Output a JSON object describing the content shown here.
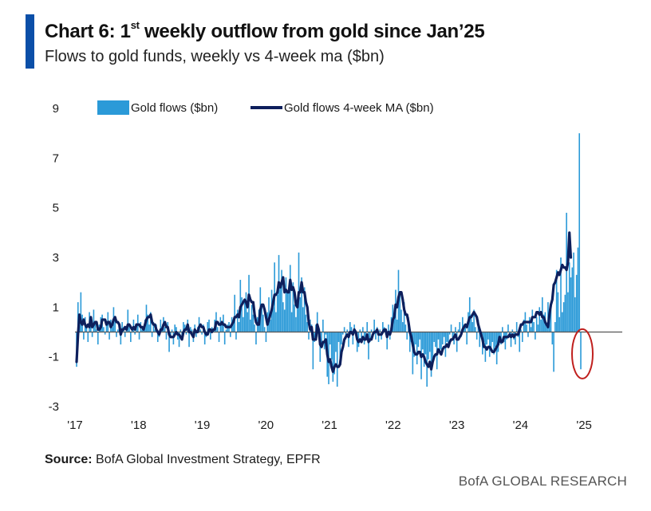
{
  "header": {
    "title_prefix": "Chart 6: 1",
    "title_sup": "st",
    "title_suffix": " weekly outflow from gold since Jan’25",
    "subtitle": "Flows to gold funds, weekly vs 4-week ma ($bn)",
    "accent_color": "#0b4fa8"
  },
  "footer": {
    "source_label": "Source:",
    "source_text": " BofA Global Investment Strategy, EPFR",
    "brand": "BofA GLOBAL RESEARCH"
  },
  "chart_data": {
    "type": "bar",
    "title": "",
    "xlabel": "",
    "ylabel": "",
    "ylim": [
      -3,
      9
    ],
    "yticks": [
      -3,
      -1,
      1,
      3,
      5,
      7,
      9
    ],
    "x_tick_labels": [
      "'17",
      "'18",
      "'19",
      "'20",
      "'21",
      "'22",
      "'23",
      "'24",
      "'25"
    ],
    "x_start_year": 2017,
    "x_end_year": 2025.6,
    "grid": false,
    "legend_position": "top",
    "colors": {
      "bars": "#2b9ad8",
      "ma_line": "#0d1f5c",
      "zero_line": "#555555",
      "highlight": "#c0201e"
    },
    "highlight": {
      "label": "latest week outflow",
      "value": -1.5
    },
    "series": [
      {
        "name": "Gold flows ($bn)",
        "type": "bar",
        "values": [
          -1.4,
          1.2,
          0.4,
          1.6,
          0.7,
          -0.3,
          0.6,
          0.3,
          -0.4,
          0.8,
          0.2,
          -0.2,
          0.9,
          0.4,
          0.1,
          -0.5,
          0.3,
          0.6,
          0.7,
          0.2,
          -0.1,
          0.4,
          0.8,
          -0.3,
          0.5,
          0.2,
          1.0,
          0.6,
          -0.2,
          0.1,
          0.3,
          -0.5,
          0.4,
          0.2,
          -0.2,
          0.1,
          0.9,
          0.3,
          -0.4,
          0.2,
          0.5,
          -0.1,
          0.3,
          0.7,
          -0.3,
          0.4,
          0.1,
          0.2,
          0.5,
          1.1,
          0.7,
          0.3,
          0.8,
          -0.2,
          0.4,
          0.1,
          0.3,
          -0.4,
          -0.2,
          0.5,
          0.1,
          0.6,
          0.2,
          -0.3,
          0.4,
          -0.8,
          -0.2,
          0.1,
          -0.5,
          0.3,
          0.2,
          -0.3,
          -0.6,
          0.1,
          -0.2,
          0.4,
          0.3,
          -0.1,
          0.5,
          -0.6,
          0.2,
          0.1,
          -0.4,
          0.3,
          -0.2,
          0.2,
          0.6,
          0.1,
          -0.1,
          0.3,
          -0.5,
          -0.2,
          0.4,
          0.5,
          -0.3,
          0.2,
          0.1,
          0.5,
          0.8,
          0.2,
          -0.4,
          0.6,
          0.3,
          0.7,
          -0.5,
          0.1,
          0.3,
          0.4,
          -0.2,
          0.6,
          0.5,
          1.5,
          -0.3,
          0.9,
          0.4,
          2.1,
          1.4,
          0.6,
          1.2,
          1.6,
          0.8,
          2.3,
          0.5,
          1.1,
          0.7,
          0.3,
          -0.5,
          0.6,
          0.9,
          1.8,
          1.0,
          0.7,
          0.2,
          -0.4,
          0.8,
          1.4,
          0.5,
          1.7,
          1.0,
          2.8,
          0.8,
          1.5,
          3.1,
          1.9,
          2.5,
          1.2,
          0.9,
          2.2,
          1.6,
          1.7,
          2.7,
          0.8,
          2.0,
          1.1,
          0.6,
          1.3,
          3.2,
          1.4,
          2.2,
          1.0,
          1.8,
          0.7,
          0.4,
          -0.3,
          0.5,
          0.3,
          -1.5,
          -0.4,
          0.3,
          0.8,
          -0.2,
          -1.2,
          -0.5,
          0.5,
          -0.7,
          -0.1,
          -1.8,
          -2.1,
          -0.5,
          -1.1,
          -2.0,
          -1.7,
          -0.8,
          -2.2,
          -0.4,
          -1.2,
          -0.5,
          -0.1,
          0.2,
          -0.3,
          0.1,
          -0.6,
          0.4,
          0.2,
          -0.5,
          0.3,
          -0.1,
          -0.8,
          -0.6,
          0.1,
          -0.3,
          0.2,
          -0.5,
          -0.2,
          0.4,
          -1.1,
          -0.4,
          0.1,
          -0.2,
          0.5,
          -0.3,
          0.2,
          -0.4,
          0.1,
          -0.3,
          0.4,
          0.2,
          -0.1,
          -0.7,
          0.3,
          -0.3,
          0.6,
          1.1,
          0.8,
          1.7,
          0.5,
          2.5,
          1.6,
          0.9,
          0.4,
          1.2,
          0.3,
          -0.3,
          0.6,
          -0.8,
          -0.4,
          -1.7,
          -1.0,
          -0.5,
          -1.3,
          -0.6,
          -0.3,
          -1.9,
          -0.7,
          -1.4,
          -0.9,
          -2.2,
          -1.1,
          -0.8,
          -1.8,
          -1.2,
          -0.4,
          -0.6,
          -1.5,
          -0.3,
          -0.9,
          -0.7,
          -0.5,
          -0.2,
          -1.0,
          -0.4,
          -0.6,
          -0.1,
          0.3,
          -0.3,
          -0.5,
          0.2,
          -0.8,
          0.1,
          0.4,
          -0.2,
          0.6,
          0.3,
          0.2,
          -0.5,
          0.8,
          1.4,
          0.7,
          0.4,
          0.9,
          0.2,
          -0.3,
          0.5,
          -0.6,
          -0.2,
          -0.9,
          -0.4,
          -1.2,
          -0.5,
          -0.3,
          -1.0,
          -0.7,
          -0.4,
          -0.9,
          -0.6,
          -1.3,
          -0.8,
          -0.2,
          -0.5,
          0.2,
          -0.4,
          -0.7,
          -0.3,
          0.3,
          -0.2,
          -0.6,
          0.1,
          -0.3,
          -0.5,
          0.4,
          -0.2,
          -0.8,
          0.1,
          -0.4,
          0.5,
          0.8,
          0.3,
          -0.2,
          0.6,
          0.2,
          0.9,
          0.4,
          -0.3,
          0.6,
          0.3,
          1.0,
          0.5,
          1.4,
          0.7,
          0.8,
          0.3,
          1.2,
          0.5,
          0.9,
          -0.5,
          -1.6,
          0.4,
          2.5,
          1.6,
          0.6,
          3.0,
          0.8,
          1.2,
          1.5,
          4.8,
          1.6,
          2.8,
          2.2,
          2.6,
          3.2,
          1.4,
          2.3,
          3.4,
          8.0,
          -1.5
        ]
      },
      {
        "name": "Gold flows 4-week MA ($bn)",
        "type": "line",
        "values": [
          -1.2,
          -0.1,
          0.7,
          0.4,
          0.3,
          0.5,
          0.3,
          0.2,
          0.3,
          0.2,
          0.6,
          0.2,
          0.3,
          0.4,
          0.4,
          0.1,
          0.1,
          0.2,
          0.5,
          0.5,
          0.5,
          0.3,
          0.4,
          0.4,
          0.2,
          0.3,
          0.5,
          0.6,
          0.4,
          0.4,
          0.3,
          -0.1,
          0.1,
          0.1,
          0.2,
          0.1,
          0.3,
          0.3,
          0.2,
          0.1,
          0.2,
          0.1,
          0.3,
          0.3,
          0.3,
          0.2,
          0.2,
          0.1,
          0.3,
          0.5,
          0.6,
          0.6,
          0.7,
          0.4,
          0.3,
          0.3,
          0.1,
          0.0,
          -0.1,
          0.1,
          0.1,
          0.3,
          0.4,
          0.2,
          0.2,
          -0.1,
          -0.2,
          -0.2,
          -0.2,
          -0.1,
          0.0,
          -0.1,
          -0.1,
          -0.2,
          -0.3,
          0.0,
          0.1,
          0.1,
          0.3,
          0.0,
          0.0,
          -0.1,
          -0.2,
          0.1,
          0.0,
          0.0,
          0.2,
          0.3,
          0.2,
          0.2,
          0.0,
          -0.1,
          -0.1,
          0.1,
          0.1,
          0.0,
          0.1,
          0.1,
          0.4,
          0.4,
          0.3,
          0.3,
          0.4,
          0.3,
          0.3,
          0.2,
          0.2,
          0.2,
          0.2,
          0.3,
          0.4,
          0.6,
          0.6,
          0.7,
          0.6,
          1.0,
          1.1,
          1.2,
          1.3,
          1.2,
          1.0,
          1.5,
          1.3,
          1.2,
          1.2,
          0.7,
          0.4,
          0.3,
          0.3,
          0.9,
          1.1,
          1.1,
          0.9,
          0.6,
          0.3,
          0.5,
          0.7,
          0.9,
          1.2,
          1.5,
          1.5,
          1.6,
          2.0,
          1.8,
          2.0,
          2.2,
          1.6,
          1.7,
          1.6,
          1.6,
          2.1,
          1.7,
          1.8,
          1.6,
          1.1,
          1.0,
          1.6,
          1.6,
          2.0,
          1.6,
          1.6,
          1.2,
          1.0,
          0.4,
          0.1,
          0.2,
          -0.3,
          -0.3,
          -0.3,
          0.3,
          0.1,
          -0.5,
          -0.6,
          -0.4,
          -0.4,
          -0.3,
          -0.9,
          -1.2,
          -1.1,
          -1.4,
          -1.6,
          -1.4,
          -1.3,
          -1.4,
          -1.4,
          -1.3,
          -0.8,
          -0.6,
          -0.3,
          -0.2,
          -0.1,
          -0.2,
          0.0,
          0.0,
          -0.1,
          0.1,
          0.0,
          -0.3,
          -0.4,
          -0.3,
          -0.4,
          -0.2,
          -0.3,
          -0.3,
          -0.1,
          -0.4,
          -0.3,
          -0.3,
          -0.1,
          0.0,
          0.0,
          0.1,
          -0.1,
          -0.1,
          -0.1,
          0.0,
          0.1,
          0.1,
          -0.2,
          0.0,
          -0.1,
          0.1,
          0.5,
          0.6,
          1.1,
          1.0,
          1.4,
          1.6,
          1.6,
          1.3,
          0.9,
          0.7,
          0.7,
          0.4,
          0.0,
          -0.2,
          -0.5,
          -0.8,
          -0.9,
          -0.9,
          -0.8,
          -0.8,
          -1.0,
          -0.9,
          -1.0,
          -1.2,
          -1.3,
          -1.4,
          -1.2,
          -1.5,
          -1.2,
          -1.0,
          -0.9,
          -0.9,
          -0.7,
          -0.8,
          -0.9,
          -0.7,
          -0.6,
          -0.6,
          -0.5,
          -0.6,
          -0.4,
          -0.3,
          -0.3,
          -0.2,
          -0.1,
          -0.3,
          -0.3,
          -0.2,
          -0.1,
          0.1,
          0.2,
          0.3,
          0.2,
          0.4,
          0.6,
          0.6,
          0.7,
          0.8,
          0.7,
          0.6,
          0.3,
          0.1,
          -0.1,
          -0.3,
          -0.6,
          -0.6,
          -0.7,
          -0.6,
          -0.6,
          -0.7,
          -0.8,
          -0.8,
          -0.7,
          -0.6,
          -0.5,
          -0.2,
          -0.4,
          -0.4,
          -0.2,
          -0.2,
          -0.2,
          -0.2,
          -0.1,
          -0.2,
          -0.1,
          -0.2,
          -0.1,
          -0.1,
          -0.1,
          0.1,
          0.3,
          0.3,
          0.4,
          0.4,
          0.4,
          0.4,
          0.4,
          0.4,
          0.6,
          0.6,
          0.6,
          0.8,
          0.8,
          0.7,
          0.8,
          0.6,
          0.6,
          0.4,
          0.3,
          0.2,
          0.7,
          1.1,
          1.3,
          1.9,
          2.0,
          2.2,
          2.4,
          2.3,
          2.5,
          2.7,
          2.6,
          2.6,
          2.5,
          2.8,
          4.0,
          3.0
        ]
      }
    ]
  }
}
